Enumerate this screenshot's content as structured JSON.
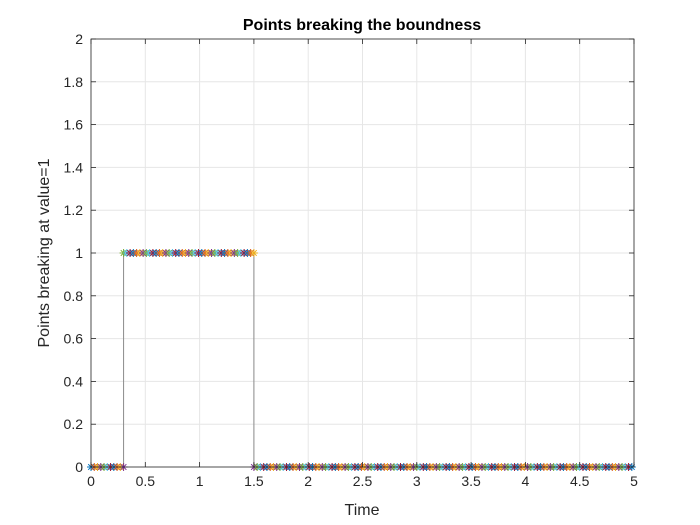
{
  "chart_data": {
    "type": "scatter",
    "title": "Points breaking the boundness",
    "xlabel": "Time",
    "ylabel": "Points breaking at value=1",
    "xlim": [
      0,
      5
    ],
    "ylim": [
      0,
      2
    ],
    "xticks": [
      "0",
      "0.5",
      "1",
      "1.5",
      "2",
      "2.5",
      "3",
      "3.5",
      "4",
      "4.5",
      "5"
    ],
    "yticks": [
      "0",
      "0.2",
      "0.4",
      "0.6",
      "0.8",
      "1",
      "1.2",
      "1.4",
      "1.6",
      "1.8",
      "2"
    ],
    "grid": true,
    "marker": "asterisk",
    "segments": [
      {
        "x_start": 0,
        "x_end": 0.3,
        "y": 0
      },
      {
        "x_start": 0.3,
        "x_end": 1.5,
        "y": 1
      },
      {
        "x_start": 1.5,
        "x_end": 5,
        "y": 0
      }
    ],
    "point_step": 0.03,
    "marker_colors": [
      "#0072bd",
      "#d95319",
      "#edb120",
      "#7e2f8e",
      "#77ac30",
      "#4dbeee",
      "#a2142f"
    ]
  }
}
